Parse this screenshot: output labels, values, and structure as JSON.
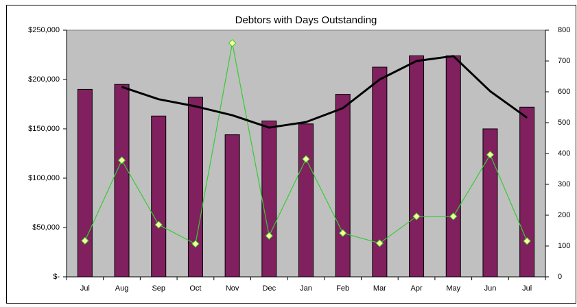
{
  "chart_data": {
    "type": "bar",
    "title": "Debtors with Days Outstanding",
    "categories": [
      "Jul",
      "Aug",
      "Sep",
      "Oct",
      "Nov",
      "Dec",
      "Jan",
      "Feb",
      "Mar",
      "Apr",
      "May",
      "Jun",
      "Jul"
    ],
    "series": [
      {
        "type": "bar",
        "color": "#80205f",
        "values": [
          190000,
          195000,
          163000,
          182000,
          144000,
          158000,
          155000,
          185000,
          212500,
          224000,
          224000,
          150000,
          172000
        ]
      },
      {
        "type": "line",
        "axis": "y2",
        "color": "#33cc33",
        "marker": "diamond",
        "marker_color": "#ffff99",
        "values": [
          117,
          378,
          169,
          107,
          758,
          133,
          382,
          142,
          109,
          196,
          196,
          396,
          116
        ]
      },
      {
        "type": "line",
        "axis": "y2",
        "color": "#000000",
        "values": [
          null,
          616,
          576,
          553,
          524,
          484,
          502,
          547,
          640,
          700,
          716,
          602,
          516
        ]
      }
    ],
    "ylim": [
      0,
      250000
    ],
    "yticks": [
      {
        "value": 0,
        "label": "$-"
      },
      {
        "value": 50000,
        "label": "$50,000"
      },
      {
        "value": 100000,
        "label": "$100,000"
      },
      {
        "value": 150000,
        "label": "$150,000"
      },
      {
        "value": 200000,
        "label": "$200,000"
      },
      {
        "value": 250000,
        "label": "$250,000"
      }
    ],
    "y2lim": [
      0,
      800
    ],
    "y2ticks": [
      0,
      100,
      200,
      300,
      400,
      500,
      600,
      700,
      800
    ],
    "grid": false,
    "plot_color": "#c0c0c0"
  }
}
